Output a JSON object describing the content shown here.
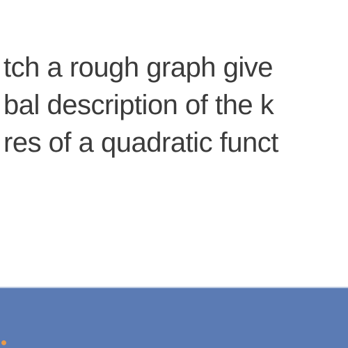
{
  "slide": {
    "line1": "tch a rough graph give",
    "line2": "bal description of the k",
    "line3": "res of a quadratic funct",
    "text_color": "#3b3b3b",
    "font_size": 40,
    "font_weight": 300
  },
  "bottom_bar": {
    "background_color": "#5b7bb4",
    "height": 88
  },
  "accent": {
    "dot_color": "#e89a4a"
  }
}
